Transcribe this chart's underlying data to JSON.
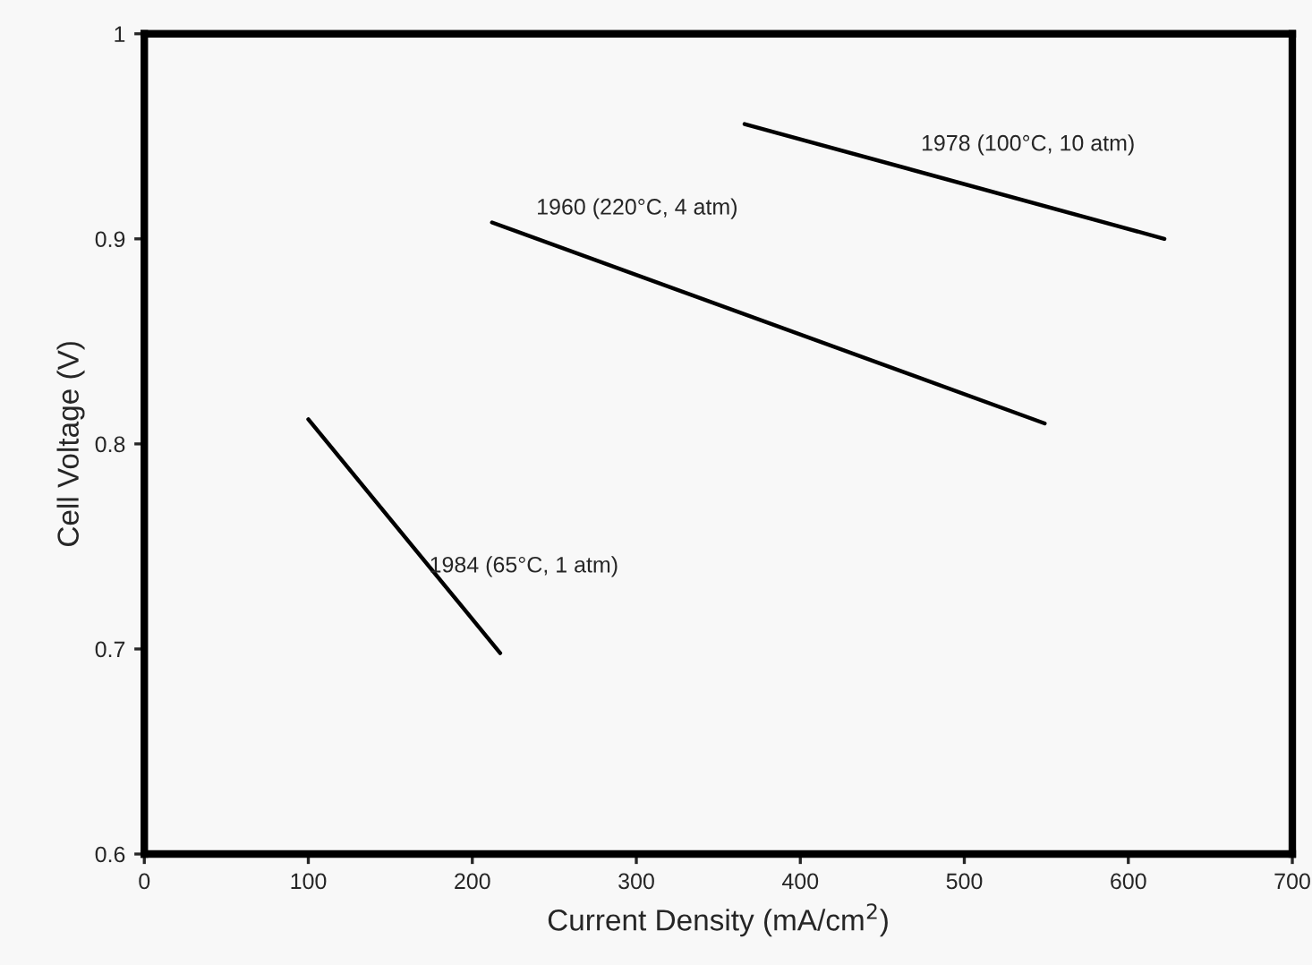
{
  "chart_data": {
    "type": "line",
    "xlabel": "Current Density (mA/cm$^{2}$)",
    "ylabel": "Cell Voltage (V)",
    "series": [
      {
        "name": "1984 (65°C, 1 atm)",
        "x": [
          100,
          217
        ],
        "values": [
          0.812,
          0.698
        ],
        "color": "#000000"
      },
      {
        "name": "1960 (220°C, 4 atm)",
        "x": [
          212,
          549
        ],
        "values": [
          0.908,
          0.81
        ],
        "color": "#000000"
      },
      {
        "name": "1978 (100°C, 10 atm)",
        "x": [
          366,
          622
        ],
        "values": [
          0.956,
          0.9
        ],
        "color": "#000000"
      }
    ],
    "xlim": [
      0,
      700
    ],
    "xticks": [
      0,
      100,
      200,
      300,
      400,
      500,
      600,
      700
    ],
    "ylim": [
      0.6,
      1
    ],
    "yticks": [
      0.6,
      0.7,
      0.8,
      0.9,
      1
    ],
    "grid": false,
    "legend": false,
    "marker": "none",
    "line_style": "solid"
  }
}
